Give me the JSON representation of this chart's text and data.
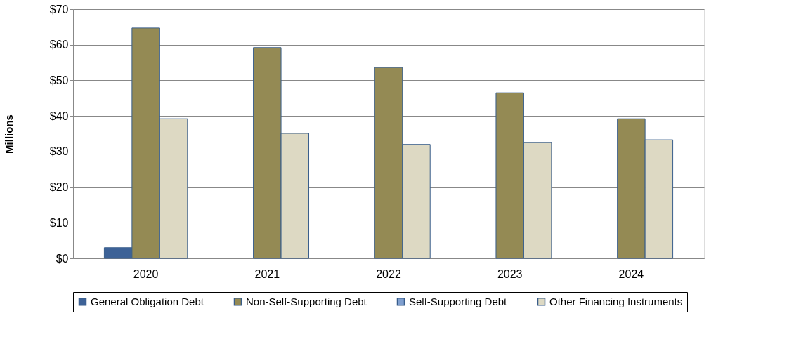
{
  "chart_data": {
    "type": "bar",
    "ylabel": "Millions",
    "categories": [
      "2020",
      "2021",
      "2022",
      "2023",
      "2024"
    ],
    "series": [
      {
        "name": "General Obligation Debt",
        "color": "#3d6297",
        "values": [
          3.0,
          null,
          null,
          null,
          null
        ]
      },
      {
        "name": "Non-Self-Supporting Debt",
        "color": "#948a54",
        "values": [
          64.7,
          59.2,
          53.6,
          46.5,
          39.2
        ]
      },
      {
        "name": "Self-Supporting Debt",
        "color": "#7f9fcf",
        "values": [
          null,
          null,
          null,
          null,
          null
        ]
      },
      {
        "name": "Other Financing Instruments",
        "color": "#ddd9c3",
        "values": [
          39.2,
          35.1,
          32.0,
          32.5,
          33.3
        ]
      }
    ],
    "ylim": [
      0,
      70
    ],
    "yticks": [
      {
        "value": 0,
        "label": "$0"
      },
      {
        "value": 10,
        "label": "$10"
      },
      {
        "value": 20,
        "label": "$20"
      },
      {
        "value": 30,
        "label": "$30"
      },
      {
        "value": 40,
        "label": "$40"
      },
      {
        "value": 50,
        "label": "$50"
      },
      {
        "value": 60,
        "label": "$60"
      },
      {
        "value": 70,
        "label": "$70"
      }
    ],
    "grid": "y",
    "legend": "bottom"
  }
}
